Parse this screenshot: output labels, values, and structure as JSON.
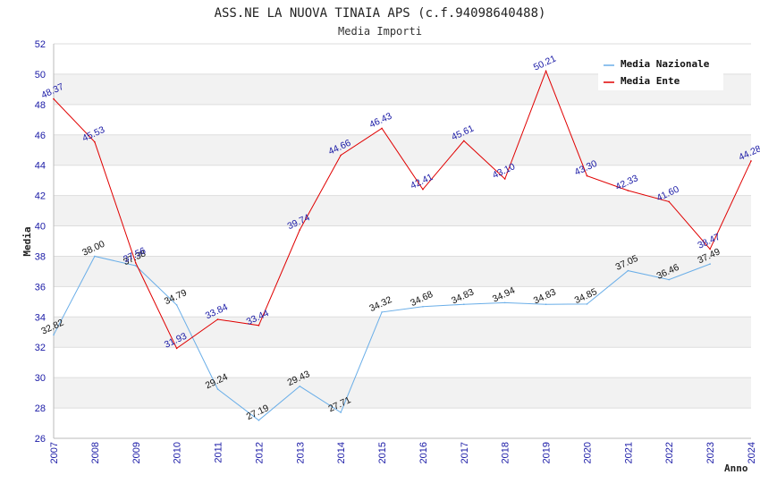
{
  "chart_data": {
    "type": "line",
    "title": "ASS.NE LA NUOVA TINAIA APS (c.f.94098640488)",
    "subtitle": "Media Importi",
    "xlabel": "Anno",
    "ylabel": "Media",
    "ylim": [
      26,
      52
    ],
    "yticks": [
      "26",
      "28",
      "30",
      "32",
      "34",
      "36",
      "38",
      "40",
      "42",
      "44",
      "46",
      "48",
      "50",
      "52"
    ],
    "categories": [
      "2007",
      "2008",
      "2009",
      "2010",
      "2011",
      "2012",
      "2013",
      "2014",
      "2015",
      "2016",
      "2017",
      "2018",
      "2019",
      "2020",
      "2021",
      "2022",
      "2023",
      "2024"
    ],
    "grid": true,
    "legend_position": "top-right",
    "series": [
      {
        "name": "Media Nazionale",
        "color": "#6aaee8",
        "label_color": "#111111",
        "values": [
          32.82,
          38.0,
          37.38,
          34.79,
          29.24,
          27.19,
          29.43,
          27.71,
          34.32,
          34.68,
          34.83,
          34.94,
          34.83,
          34.85,
          37.05,
          36.46,
          37.49,
          null
        ],
        "labels": [
          "32.82",
          "38.00",
          "37.38",
          "34.79",
          "29.24",
          "27.19",
          "29.43",
          "27.71",
          "34.32",
          "34.68",
          "34.83",
          "34.94",
          "34.83",
          "34.85",
          "37.05",
          "36.46",
          "37.49",
          ""
        ]
      },
      {
        "name": "Media Ente",
        "color": "#e00000",
        "label_color": "#1a1aa6",
        "values": [
          48.37,
          45.53,
          37.56,
          31.93,
          33.84,
          33.44,
          39.74,
          44.66,
          46.43,
          42.41,
          45.61,
          43.1,
          50.21,
          43.3,
          42.33,
          41.6,
          38.47,
          44.28
        ],
        "labels": [
          "48.37",
          "45.53",
          "37.56",
          "31.93",
          "33.84",
          "33.44",
          "39.74",
          "44.66",
          "46.43",
          "42.41",
          "45.61",
          "43.10",
          "50.21",
          "43.30",
          "42.33",
          "41.60",
          "38.47",
          "44.28"
        ]
      }
    ]
  }
}
